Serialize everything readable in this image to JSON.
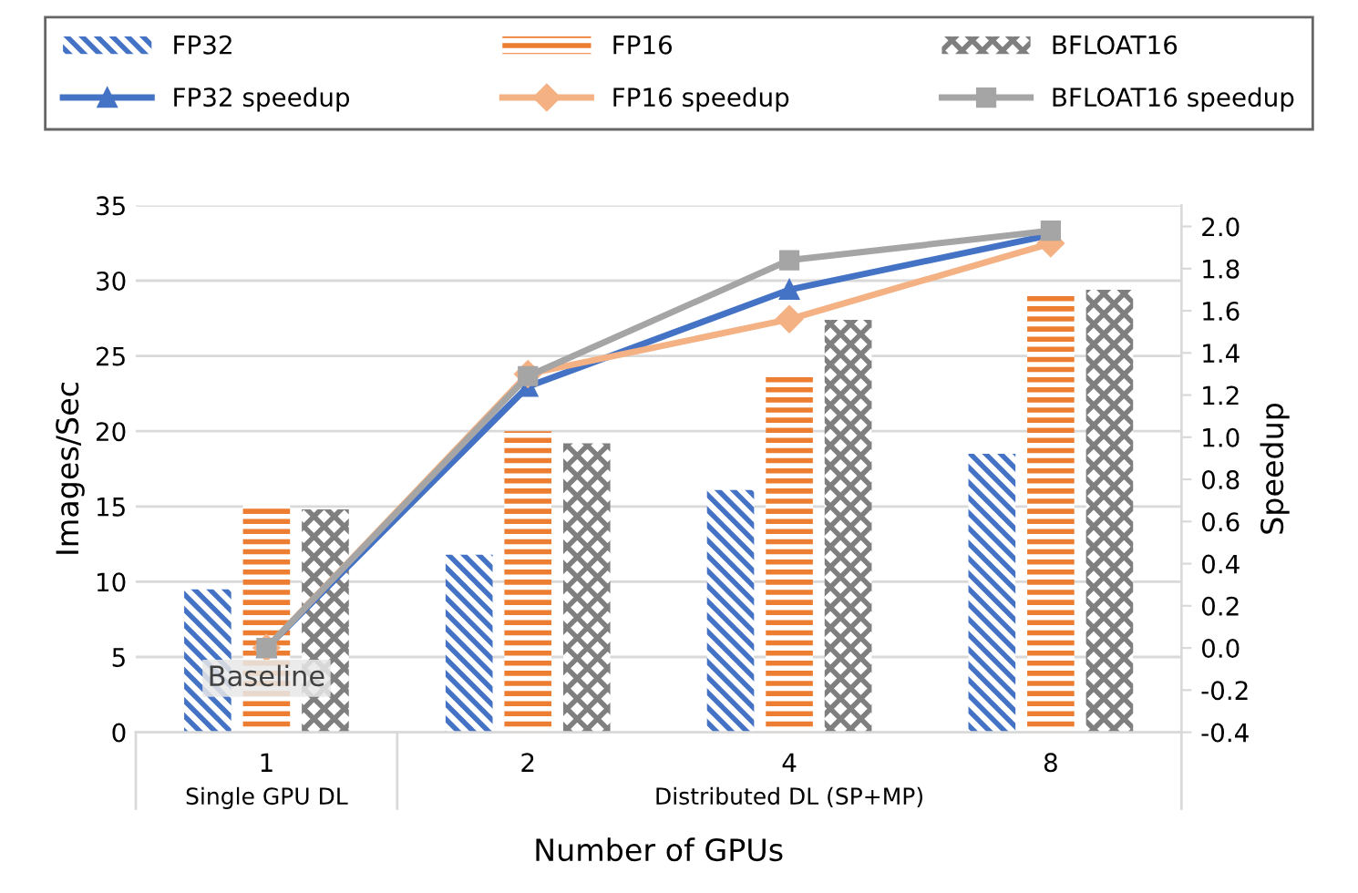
{
  "chart_data": {
    "type": "bar",
    "xlabel": "Number of GPUs",
    "ylabel": "Images/Sec",
    "y2label": "Speedup",
    "categories": [
      "1",
      "2",
      "4",
      "8"
    ],
    "series": [
      {
        "name": "FP32",
        "color": "#4472c4",
        "values": [
          9.5,
          11.8,
          16.1,
          18.5
        ]
      },
      {
        "name": "FP16",
        "color": "#ed7d31",
        "values": [
          15.1,
          20.0,
          23.8,
          29.2
        ]
      },
      {
        "name": "BFLOAT16",
        "color": "#7f7f7f",
        "values": [
          14.8,
          19.2,
          27.4,
          29.4
        ]
      },
      {
        "name": "FP32 speedup",
        "type": "line",
        "axis": "y2",
        "color": "#4472c4",
        "marker": "triangle",
        "values": [
          0.0,
          1.24,
          1.7,
          1.96
        ]
      },
      {
        "name": "FP16 speedup",
        "type": "line",
        "axis": "y2",
        "color": "#f4b183",
        "marker": "diamond",
        "values": [
          0.0,
          1.3,
          1.56,
          1.92
        ]
      },
      {
        "name": "BFLOAT16 speedup",
        "type": "line",
        "axis": "y2",
        "color": "#a5a5a5",
        "marker": "square",
        "values": [
          0.0,
          1.29,
          1.84,
          1.98
        ]
      }
    ],
    "ylim": [
      0,
      35
    ],
    "yticks": [
      0,
      5,
      10,
      15,
      20,
      25,
      30,
      35
    ],
    "y2lim": [
      -0.4,
      2.1
    ],
    "y2ticks": [
      {
        "value": -0.4,
        "label": "-0.4"
      },
      {
        "value": -0.2,
        "label": "-0.2"
      },
      {
        "value": 0,
        "label": "0.0"
      },
      {
        "value": 0.2,
        "label": "0.2"
      },
      {
        "value": 0.4,
        "label": "0.4"
      },
      {
        "value": 0.6,
        "label": "0.6"
      },
      {
        "value": 0.8,
        "label": "0.8"
      },
      {
        "value": 1.0,
        "label": "1.0"
      },
      {
        "value": 1.2,
        "label": "1.2"
      },
      {
        "value": 1.4,
        "label": "1.4"
      },
      {
        "value": 1.6,
        "label": "1.6"
      },
      {
        "value": 1.8,
        "label": "1.8"
      },
      {
        "value": 2.0,
        "label": "2.0"
      }
    ],
    "annotations": [
      {
        "text": "Baseline",
        "x": "1",
        "y": 0
      },
      "Single GPU DL",
      "Distributed DL (SP+MP)"
    ],
    "grid": "y",
    "legend": "top"
  }
}
